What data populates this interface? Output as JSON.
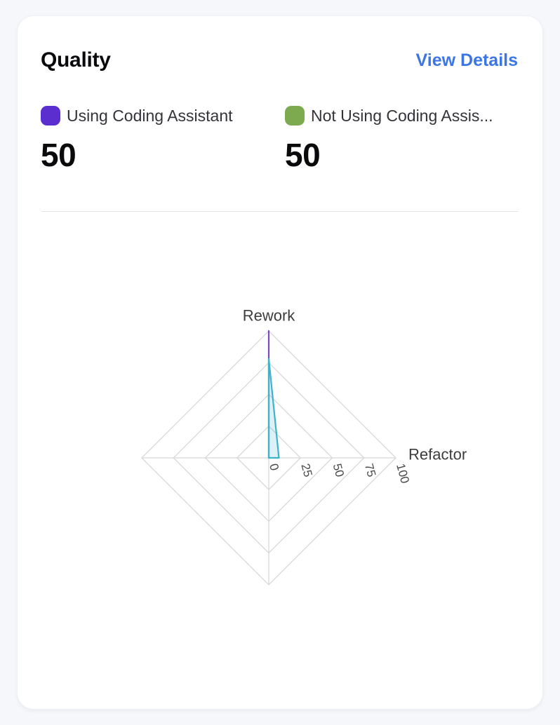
{
  "card": {
    "title": "Quality",
    "view_details_label": "View Details"
  },
  "metrics": [
    {
      "label": "Using Coding Assistant",
      "label_display": "Using Coding Assistant",
      "value": "50",
      "swatch_color": "#5b2ecf"
    },
    {
      "label": "Not Using Coding Assistant",
      "label_display": "Not Using Coding Assis...",
      "value": "50",
      "swatch_color": "#7daa4e"
    }
  ],
  "chart_data": {
    "type": "radar",
    "title": "Quality",
    "indicators": [
      {
        "name": "Rework",
        "max": 100
      },
      {
        "name": "Refactor",
        "max": 100
      },
      {
        "name": "",
        "max": 100
      },
      {
        "name": "",
        "max": 100
      }
    ],
    "tick_labels": [
      0,
      25,
      50,
      75,
      100
    ],
    "tick_rotation_deg": 75,
    "axis_range": [
      0,
      100
    ],
    "grid_on": true,
    "grid_color": "#d8d8d8",
    "tick_label_color": "#4a4a4a",
    "axis_name_color": "#3c3c3c",
    "series": [
      {
        "name": "Using Coding Assistant",
        "values": [
          100,
          0,
          0,
          0
        ],
        "stroke": "#7a49c0",
        "fill": "#7a49c0",
        "fill_opacity": 0.2
      },
      {
        "name": "Not Using Coding Assistant",
        "values": [
          78,
          8,
          0,
          0
        ],
        "stroke": "#3fb3c6",
        "fill": "#3fb3c6",
        "fill_opacity": 0.18
      }
    ]
  }
}
